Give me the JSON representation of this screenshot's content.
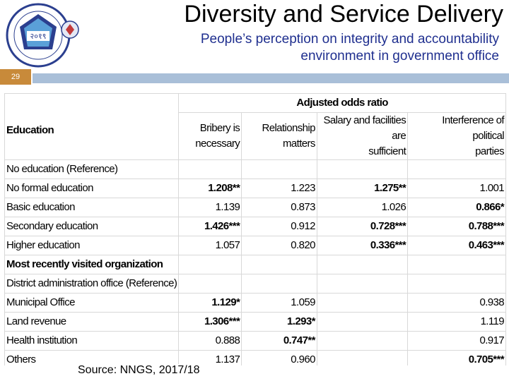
{
  "header": {
    "title": "Diversity and Service Delivery",
    "subtitle_line1": "People’s perception on integrity and accountability",
    "subtitle_line2": "environment in government office",
    "slide_number": "29",
    "logo_year": "२०१९"
  },
  "table": {
    "super_header": "Adjusted odds ratio",
    "row_header": "Education",
    "columns": [
      [
        "Bribery is",
        "necessary"
      ],
      [
        "Relationship",
        "matters"
      ],
      [
        "Salary and facilities are",
        "sufficient"
      ],
      [
        "Interference of political",
        "parties"
      ]
    ],
    "rows": [
      {
        "label": "No education (Reference)",
        "values": [
          "",
          "",
          "",
          ""
        ],
        "section": false
      },
      {
        "label": "No formal education",
        "values": [
          "1.208**",
          "1.223",
          "1.275**",
          "1.001"
        ],
        "section": false
      },
      {
        "label": "Basic education",
        "values": [
          "1.139",
          "0.873",
          "1.026",
          "0.866*"
        ],
        "section": false
      },
      {
        "label": "Secondary education",
        "values": [
          "1.426***",
          "0.912",
          "0.728***",
          "0.788***"
        ],
        "section": false
      },
      {
        "label": "Higher education",
        "values": [
          "1.057",
          "0.820",
          "0.336***",
          "0.463***"
        ],
        "section": false
      },
      {
        "label": "Most recently visited organization",
        "values": [
          "",
          "",
          "",
          ""
        ],
        "section": true
      },
      {
        "label": "District administration office (Reference)",
        "values": [
          "",
          "",
          "",
          ""
        ],
        "section": false
      },
      {
        "label": "Municipal Office",
        "values": [
          "1.129*",
          "1.059",
          "",
          "0.938"
        ],
        "section": false
      },
      {
        "label": "Land revenue",
        "values": [
          "1.306***",
          "1.293*",
          "",
          "1.119"
        ],
        "section": false
      },
      {
        "label": "Health institution",
        "values": [
          "0.888",
          "0.747**",
          "",
          "0.917"
        ],
        "section": false
      },
      {
        "label": "Others",
        "values": [
          "1.137",
          "0.960",
          "",
          "0.705***"
        ],
        "section": false
      }
    ]
  },
  "footer": {
    "source": "Source: NNGS, 2017/18"
  }
}
